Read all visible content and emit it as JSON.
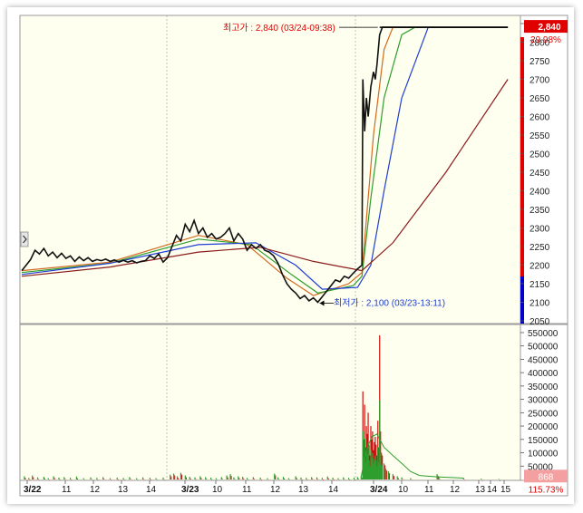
{
  "chart_data": {
    "type": "line",
    "price_panel": {
      "yticks": [
        "2850",
        "2800",
        "2750",
        "2700",
        "2650",
        "2600",
        "2550",
        "2500",
        "2450",
        "2400",
        "2350",
        "2300",
        "2250",
        "2200",
        "2150",
        "2100",
        "2050"
      ],
      "ylim": [
        2050,
        2850
      ],
      "current_price_label": "2,840",
      "change_label": "29.98%",
      "high_annotation": "최고가 : 2,840 (03/24-09:38)",
      "low_annotation": "최저가 : 2,100 (03/23-13:11)",
      "price_series": [
        [
          0,
          2185
        ],
        [
          5,
          2200
        ],
        [
          10,
          2215
        ],
        [
          15,
          2240
        ],
        [
          20,
          2230
        ],
        [
          25,
          2245
        ],
        [
          30,
          2225
        ],
        [
          35,
          2235
        ],
        [
          40,
          2220
        ],
        [
          45,
          2232
        ],
        [
          50,
          2218
        ],
        [
          55,
          2225
        ],
        [
          60,
          2210
        ],
        [
          65,
          2222
        ],
        [
          70,
          2212
        ],
        [
          75,
          2220
        ],
        [
          80,
          2210
        ],
        [
          85,
          2215
        ],
        [
          90,
          2212
        ],
        [
          95,
          2216
        ],
        [
          100,
          2210
        ],
        [
          105,
          2214
        ],
        [
          110,
          2208
        ],
        [
          115,
          2213
        ],
        [
          120,
          2208
        ],
        [
          125,
          2212
        ],
        [
          130,
          2206
        ],
        [
          135,
          2210
        ],
        [
          140,
          2212
        ],
        [
          145,
          2225
        ],
        [
          150,
          2218
        ],
        [
          155,
          2230
        ],
        [
          160,
          2208
        ],
        [
          165,
          2220
        ],
        [
          170,
          2250
        ],
        [
          175,
          2280
        ],
        [
          180,
          2265
        ],
        [
          185,
          2310
        ],
        [
          190,
          2290
        ],
        [
          195,
          2320
        ],
        [
          200,
          2285
        ],
        [
          205,
          2300
        ],
        [
          210,
          2275
        ],
        [
          215,
          2285
        ],
        [
          220,
          2270
        ],
        [
          225,
          2275
        ],
        [
          230,
          2285
        ],
        [
          235,
          2300
        ],
        [
          240,
          2265
        ],
        [
          245,
          2285
        ],
        [
          250,
          2270
        ],
        [
          255,
          2240
        ],
        [
          260,
          2255
        ],
        [
          265,
          2245
        ],
        [
          270,
          2255
        ],
        [
          275,
          2240
        ],
        [
          280,
          2235
        ],
        [
          285,
          2225
        ],
        [
          290,
          2205
        ],
        [
          295,
          2175
        ],
        [
          300,
          2150
        ],
        [
          305,
          2135
        ],
        [
          310,
          2125
        ],
        [
          315,
          2110
        ],
        [
          320,
          2118
        ],
        [
          325,
          2104
        ],
        [
          330,
          2112
        ],
        [
          335,
          2100
        ],
        [
          340,
          2115
        ],
        [
          345,
          2130
        ],
        [
          350,
          2145
        ],
        [
          355,
          2160
        ],
        [
          360,
          2155
        ],
        [
          365,
          2170
        ],
        [
          370,
          2165
        ],
        [
          375,
          2178
        ],
        [
          380,
          2190
        ],
        [
          385,
          2200
        ],
        [
          386,
          2700
        ],
        [
          388,
          2560
        ],
        [
          390,
          2650
        ],
        [
          392,
          2600
        ],
        [
          395,
          2680
        ],
        [
          398,
          2720
        ],
        [
          400,
          2700
        ],
        [
          402,
          2740
        ],
        [
          405,
          2820
        ],
        [
          408,
          2840
        ],
        [
          410,
          2840
        ],
        [
          430,
          2840
        ],
        [
          550,
          2840
        ]
      ],
      "moving_averages": [
        {
          "color": "#d2691e",
          "points": [
            [
              0,
              2185
            ],
            [
              100,
              2208
            ],
            [
              200,
              2280
            ],
            [
              255,
              2255
            ],
            [
              300,
              2165
            ],
            [
              330,
              2118
            ],
            [
              370,
              2150
            ],
            [
              385,
              2180
            ],
            [
              398,
              2550
            ],
            [
              410,
              2780
            ],
            [
              420,
              2840
            ],
            [
              550,
              2840
            ]
          ]
        },
        {
          "color": "#2e9e2e",
          "points": [
            [
              0,
              2180
            ],
            [
              100,
              2205
            ],
            [
              200,
              2270
            ],
            [
              260,
              2255
            ],
            [
              305,
              2175
            ],
            [
              335,
              2125
            ],
            [
              375,
              2145
            ],
            [
              385,
              2170
            ],
            [
              395,
              2380
            ],
            [
              410,
              2650
            ],
            [
              430,
              2820
            ],
            [
              445,
              2840
            ],
            [
              550,
              2840
            ]
          ]
        },
        {
          "color": "#1f3fd2",
          "points": [
            [
              0,
              2175
            ],
            [
              100,
              2205
            ],
            [
              200,
              2255
            ],
            [
              265,
              2260
            ],
            [
              310,
              2200
            ],
            [
              340,
              2135
            ],
            [
              380,
              2140
            ],
            [
              395,
              2200
            ],
            [
              410,
              2400
            ],
            [
              430,
              2650
            ],
            [
              460,
              2840
            ],
            [
              550,
              2840
            ]
          ]
        },
        {
          "color": "#8b1a1a",
          "points": [
            [
              0,
              2170
            ],
            [
              100,
              2195
            ],
            [
              200,
              2235
            ],
            [
              270,
              2248
            ],
            [
              330,
              2210
            ],
            [
              385,
              2185
            ],
            [
              420,
              2260
            ],
            [
              480,
              2450
            ],
            [
              550,
              2700
            ]
          ]
        }
      ]
    },
    "volume_panel": {
      "yticks": [
        "550000",
        "500000",
        "450000",
        "400000",
        "350000",
        "300000",
        "250000",
        "200000",
        "150000",
        "100000",
        "50000"
      ],
      "ylim": [
        0,
        560000
      ],
      "volume_label": "868",
      "percent_label": "115.73%",
      "volume_bars": [
        [
          3,
          12000
        ],
        [
          8,
          6000
        ],
        [
          12,
          15000
        ],
        [
          18,
          8000
        ],
        [
          25,
          10000
        ],
        [
          30,
          5000
        ],
        [
          36,
          12000
        ],
        [
          42,
          7000
        ],
        [
          48,
          9000
        ],
        [
          55,
          6000
        ],
        [
          62,
          11000
        ],
        [
          70,
          5000
        ],
        [
          78,
          8000
        ],
        [
          85,
          6000
        ],
        [
          92,
          9000
        ],
        [
          100,
          5000
        ],
        [
          108,
          7000
        ],
        [
          115,
          6000
        ],
        [
          122,
          9000
        ],
        [
          130,
          5000
        ],
        [
          137,
          8000
        ],
        [
          145,
          6000
        ],
        [
          152,
          5000
        ],
        [
          160,
          7000
        ],
        [
          168,
          18000
        ],
        [
          172,
          22000
        ],
        [
          176,
          12000
        ],
        [
          180,
          25000
        ],
        [
          185,
          15000
        ],
        [
          190,
          10000
        ],
        [
          196,
          8000
        ],
        [
          202,
          12000
        ],
        [
          208,
          9000
        ],
        [
          214,
          7000
        ],
        [
          220,
          5000
        ],
        [
          226,
          9000
        ],
        [
          232,
          15000
        ],
        [
          236,
          20000
        ],
        [
          240,
          8000
        ],
        [
          245,
          12000
        ],
        [
          250,
          10000
        ],
        [
          255,
          6000
        ],
        [
          262,
          9000
        ],
        [
          270,
          7000
        ],
        [
          278,
          5000
        ],
        [
          286,
          22000
        ],
        [
          290,
          8000
        ],
        [
          296,
          10000
        ],
        [
          302,
          5000
        ],
        [
          310,
          12000
        ],
        [
          316,
          7000
        ],
        [
          322,
          6000
        ],
        [
          328,
          9000
        ],
        [
          334,
          8000
        ],
        [
          340,
          6000
        ],
        [
          346,
          11000
        ],
        [
          352,
          7000
        ],
        [
          358,
          5000
        ],
        [
          364,
          8000
        ],
        [
          370,
          6000
        ],
        [
          376,
          7000
        ],
        [
          380,
          9000
        ],
        [
          384,
          12000
        ],
        [
          386,
          330000
        ],
        [
          387,
          150000
        ],
        [
          388,
          280000
        ],
        [
          389,
          120000
        ],
        [
          390,
          200000
        ],
        [
          391,
          170000
        ],
        [
          392,
          250000
        ],
        [
          393,
          130000
        ],
        [
          394,
          90000
        ],
        [
          395,
          200000
        ],
        [
          396,
          150000
        ],
        [
          397,
          180000
        ],
        [
          398,
          110000
        ],
        [
          399,
          140000
        ],
        [
          400,
          160000
        ],
        [
          401,
          130000
        ],
        [
          402,
          90000
        ],
        [
          403,
          220000
        ],
        [
          404,
          120000
        ],
        [
          405,
          540000
        ],
        [
          406,
          180000
        ],
        [
          407,
          100000
        ],
        [
          408,
          90000
        ],
        [
          410,
          60000
        ],
        [
          412,
          40000
        ],
        [
          415,
          30000
        ],
        [
          420,
          20000
        ],
        [
          425,
          12000
        ],
        [
          430,
          8000
        ],
        [
          440,
          5000
        ],
        [
          470,
          20000
        ],
        [
          472,
          8000
        ],
        [
          500,
          5000
        ],
        [
          520,
          3000
        ],
        [
          540,
          2000
        ]
      ],
      "volume_ma": [
        [
          384,
          10000
        ],
        [
          390,
          110000
        ],
        [
          396,
          160000
        ],
        [
          402,
          170000
        ],
        [
          410,
          120000
        ],
        [
          420,
          90000
        ],
        [
          430,
          60000
        ],
        [
          440,
          30000
        ],
        [
          450,
          15000
        ],
        [
          470,
          10000
        ],
        [
          500,
          5000
        ]
      ]
    },
    "x_tick_labels": [
      {
        "label": "3/22",
        "x": 2,
        "bold": true
      },
      {
        "label": "11",
        "x": 44
      },
      {
        "label": "12",
        "x": 75
      },
      {
        "label": "13",
        "x": 106
      },
      {
        "label": "14",
        "x": 137
      },
      {
        "label": "3/23",
        "x": 176,
        "bold": true
      },
      {
        "label": "10",
        "x": 210
      },
      {
        "label": "11",
        "x": 243
      },
      {
        "label": "12",
        "x": 274
      },
      {
        "label": "13",
        "x": 305
      },
      {
        "label": "14",
        "x": 338
      },
      {
        "label": "3/24",
        "x": 384,
        "bold": true
      },
      {
        "label": "10",
        "x": 415
      },
      {
        "label": "11",
        "x": 444
      },
      {
        "label": "12",
        "x": 472
      },
      {
        "label": "13",
        "x": 500
      },
      {
        "label": "14",
        "x": 513
      },
      {
        "label": "15",
        "x": 528
      }
    ],
    "day_separators": [
      176,
      384
    ]
  }
}
